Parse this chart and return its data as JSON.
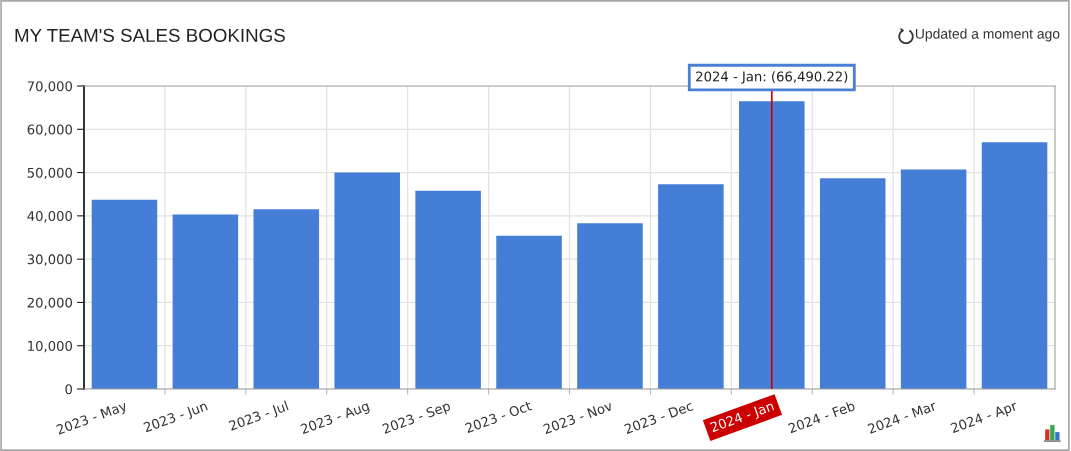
{
  "chart_data": {
    "type": "bar",
    "title": "MY TEAM'S SALES BOOKINGS",
    "categories": [
      "2023 - May",
      "2023 - Jun",
      "2023 - Jul",
      "2023 - Aug",
      "2023 - Sep",
      "2023 - Oct",
      "2023 - Nov",
      "2023 - Dec",
      "2024 - Jan",
      "2024 - Feb",
      "2024 - Mar",
      "2024 - Apr"
    ],
    "values": [
      43700,
      40300,
      41500,
      50000,
      45800,
      35400,
      38300,
      47300,
      66490.22,
      48700,
      50700,
      57000
    ],
    "color": "#447ed6",
    "ylim": [
      0,
      70000
    ],
    "yticks": [
      0,
      {
        "value": 10000,
        "label": "10,000"
      },
      {
        "value": 20000,
        "label": "20,000"
      },
      {
        "value": 30000,
        "label": "30,000"
      },
      {
        "value": 40000,
        "label": "40,000"
      },
      {
        "value": 50000,
        "label": "50,000"
      },
      {
        "value": 60000,
        "label": "60,000"
      },
      {
        "value": 70000,
        "label": "70,000"
      }
    ],
    "grid": true,
    "ref_lines": [
      {
        "axis": "x",
        "value": "2024 - Jan",
        "color": "#cc0000"
      }
    ],
    "annotations": [
      {
        "text": "2024 - Jan: (66,490.22)",
        "x": "2024 - Jan",
        "y": 66490.22
      },
      "Updated a moment ago"
    ]
  }
}
